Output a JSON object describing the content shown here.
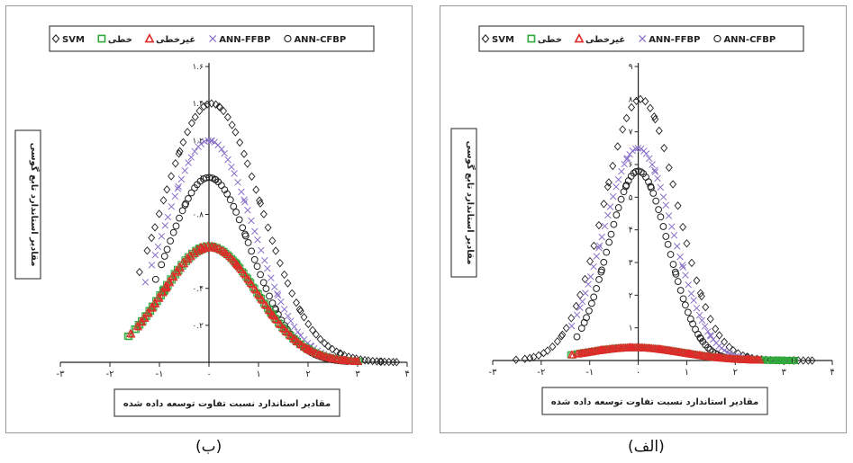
{
  "charts": [
    {
      "caption": "(ب)"
    },
    {
      "caption": "(الف)"
    }
  ],
  "chart_data": [
    {
      "type": "scatter",
      "panel": "(ب)",
      "xlabel": "مقادیر استاندارد نسبت تفاوت توسعه داده شده",
      "ylabel": "مقادیر استاندارد تابع گوسی",
      "xlim": [
        -3,
        4
      ],
      "ylim": [
        0,
        1.6
      ],
      "x_ticks": [
        -3,
        -2,
        -1,
        0,
        1,
        2,
        3,
        4
      ],
      "x_tick_labels": [
        "-۳",
        "-۲",
        "-۱",
        "۰",
        "۱",
        "۲",
        "۳",
        "۴"
      ],
      "y_ticks": [
        0.2,
        0.4,
        0.6,
        0.8,
        1.0,
        1.2,
        1.4,
        1.6
      ],
      "y_tick_labels": [
        "۰.۲",
        "۰.۴",
        "۰.۶",
        "۰.۸",
        "۱",
        "۱.۲",
        "۱.۴",
        "۱.۶"
      ],
      "legend_position": "top",
      "series": [
        {
          "name": "SVM",
          "marker": "diamond",
          "color": "#222222",
          "peak": 1.4,
          "sigma": 1.0,
          "center": 0.05,
          "xmin": -1.3,
          "xmax": 3.8
        },
        {
          "name": "خطی",
          "marker": "square",
          "color": "#2eaa3a",
          "peak": 0.63,
          "sigma": 0.95,
          "center": 0.0,
          "xmin": -1.55,
          "xmax": 3.0
        },
        {
          "name": "غیرخطی",
          "marker": "triangle",
          "color": "#e02a2a",
          "peak": 0.63,
          "sigma": 0.95,
          "center": 0.0,
          "xmin": -1.5,
          "xmax": 3.0
        },
        {
          "name": "ANN-FFBP",
          "marker": "x",
          "color": "#8a70c8",
          "peak": 1.2,
          "sigma": 0.9,
          "center": 0.0,
          "xmin": -1.2,
          "xmax": 3.0
        },
        {
          "name": "ANN-CFBP",
          "marker": "circle",
          "color": "#222222",
          "peak": 1.0,
          "sigma": 0.85,
          "center": 0.0,
          "xmin": -1.0,
          "xmax": 2.8
        }
      ]
    },
    {
      "type": "scatter",
      "panel": "(الف)",
      "xlabel": "مقادیر استاندارد نسبت تفاوت توسعه داده شده",
      "ylabel": "مقادیر استاندارد تابع گوسی",
      "xlim": [
        -3,
        4
      ],
      "ylim": [
        0,
        9
      ],
      "x_ticks": [
        -3,
        -2,
        -1,
        0,
        1,
        2,
        3,
        4
      ],
      "x_tick_labels": [
        "-۳",
        "-۲",
        "-۱",
        "۰",
        "۱",
        "۲",
        "۳",
        "۴"
      ],
      "y_ticks": [
        1,
        2,
        3,
        4,
        5,
        6,
        7,
        8,
        9
      ],
      "y_tick_labels": [
        "۱",
        "۲",
        "۳",
        "۴",
        "۵",
        "۶",
        "۷",
        "۸",
        "۹"
      ],
      "legend_position": "top",
      "series": [
        {
          "name": "SVM",
          "marker": "diamond",
          "color": "#222222",
          "peak": 8.0,
          "sigma": 0.75,
          "center": 0.05,
          "xmin": -2.4,
          "xmax": 3.6
        },
        {
          "name": "خطی",
          "marker": "square",
          "color": "#2eaa3a",
          "peak": 0.4,
          "sigma": 1.0,
          "center": -0.1,
          "xmin": -1.3,
          "xmax": 3.2
        },
        {
          "name": "غیرخطی",
          "marker": "triangle",
          "color": "#e02a2a",
          "peak": 0.4,
          "sigma": 1.0,
          "center": -0.1,
          "xmin": -1.3,
          "xmax": 2.5
        },
        {
          "name": "ANN-FFBP",
          "marker": "x",
          "color": "#8a70c8",
          "peak": 6.5,
          "sigma": 0.72,
          "center": 0.0,
          "xmin": -1.3,
          "xmax": 2.3
        },
        {
          "name": "ANN-CFBP",
          "marker": "circle",
          "color": "#222222",
          "peak": 5.8,
          "sigma": 0.62,
          "center": 0.0,
          "xmin": -1.2,
          "xmax": 2.0
        }
      ]
    }
  ]
}
